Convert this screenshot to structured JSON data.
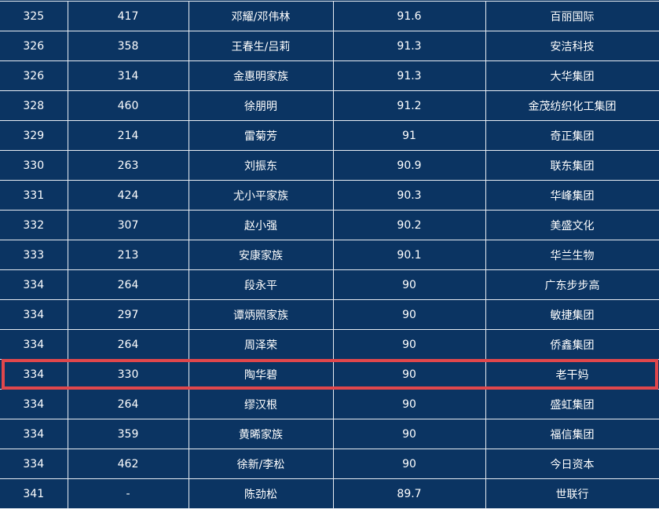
{
  "highlight_color": "#e0474c",
  "highlight_row_index": 12,
  "rows": [
    [
      "325",
      "417",
      "邓耀/邓伟林",
      "91.6",
      "百丽国际"
    ],
    [
      "326",
      "358",
      "王春生/吕莉",
      "91.3",
      "安洁科技"
    ],
    [
      "326",
      "314",
      "金惠明家族",
      "91.3",
      "大华集团"
    ],
    [
      "328",
      "460",
      "徐朋明",
      "91.2",
      "金茂纺织化工集团"
    ],
    [
      "329",
      "214",
      "雷菊芳",
      "91",
      "奇正集团"
    ],
    [
      "330",
      "263",
      "刘振东",
      "90.9",
      "联东集团"
    ],
    [
      "331",
      "424",
      "尤小平家族",
      "90.3",
      "华峰集团"
    ],
    [
      "332",
      "307",
      "赵小强",
      "90.2",
      "美盛文化"
    ],
    [
      "333",
      "213",
      "安康家族",
      "90.1",
      "华兰生物"
    ],
    [
      "334",
      "264",
      "段永平",
      "90",
      "广东步步高"
    ],
    [
      "334",
      "297",
      "谭炳照家族",
      "90",
      "敏捷集团"
    ],
    [
      "334",
      "264",
      "周泽荣",
      "90",
      "侨鑫集团"
    ],
    [
      "334",
      "330",
      "陶华碧",
      "90",
      "老干妈"
    ],
    [
      "334",
      "264",
      "缪汉根",
      "90",
      "盛虹集团"
    ],
    [
      "334",
      "359",
      "黄晞家族",
      "90",
      "福信集团"
    ],
    [
      "334",
      "462",
      "徐新/李松",
      "90",
      "今日资本"
    ],
    [
      "341",
      "-",
      "陈劲松",
      "89.7",
      "世联行"
    ]
  ]
}
